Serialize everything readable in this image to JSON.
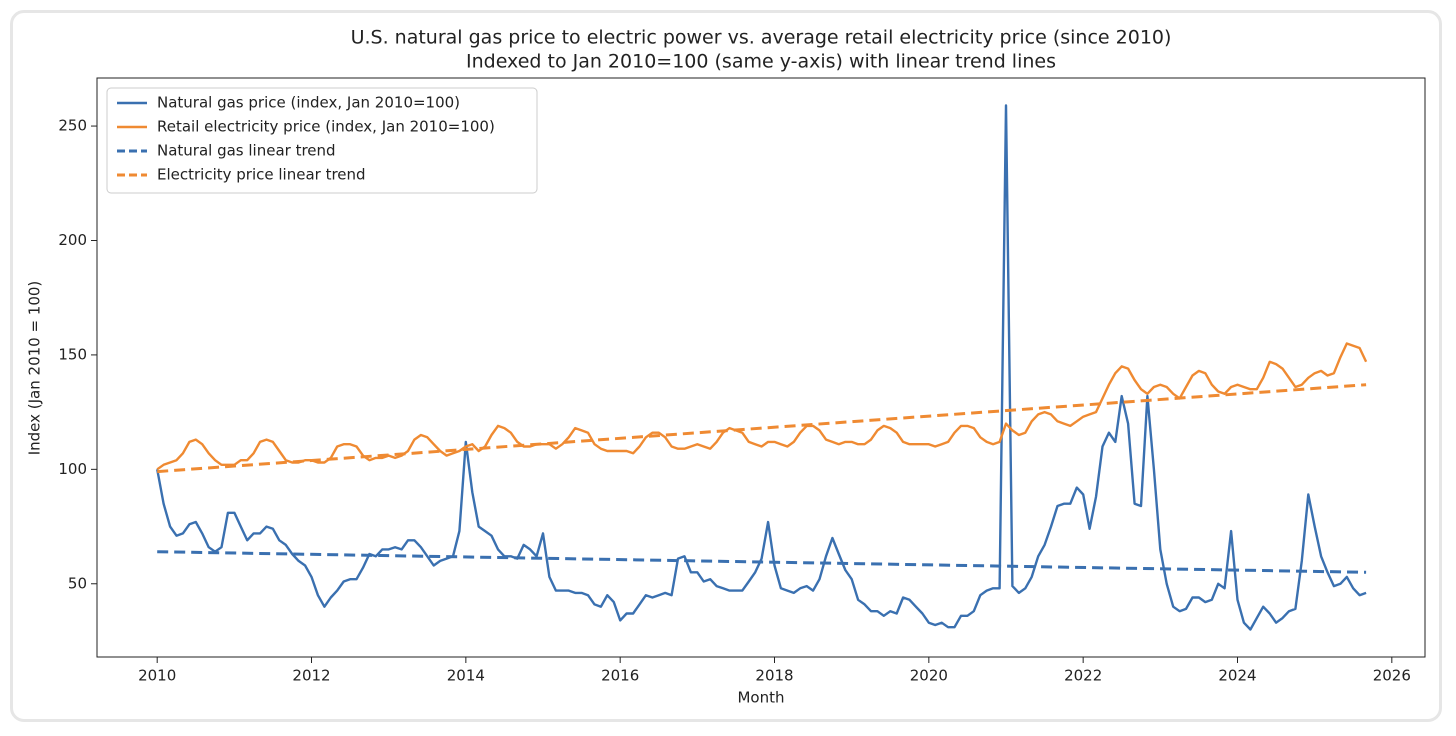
{
  "chart_data": {
    "type": "line",
    "title": "U.S. natural gas price to electric power vs. average retail electricity price (since 2010)",
    "subtitle": "Indexed to Jan 2010=100 (same y-axis) with linear trend lines",
    "x_label": "Month",
    "y_label": "Index (Jan 2010 = 100)",
    "x": [
      2010,
      2010.083,
      2010.167,
      2010.25,
      2010.333,
      2010.417,
      2010.5,
      2010.583,
      2010.667,
      2010.75,
      2010.833,
      2010.917,
      2011,
      2011.083,
      2011.167,
      2011.25,
      2011.333,
      2011.417,
      2011.5,
      2011.583,
      2011.667,
      2011.75,
      2011.833,
      2011.917,
      2012,
      2012.083,
      2012.167,
      2012.25,
      2012.333,
      2012.417,
      2012.5,
      2012.583,
      2012.667,
      2012.75,
      2012.833,
      2012.917,
      2013,
      2013.083,
      2013.167,
      2013.25,
      2013.333,
      2013.417,
      2013.5,
      2013.583,
      2013.667,
      2013.75,
      2013.833,
      2013.917,
      2014,
      2014.083,
      2014.167,
      2014.25,
      2014.333,
      2014.417,
      2014.5,
      2014.583,
      2014.667,
      2014.75,
      2014.833,
      2014.917,
      2015,
      2015.083,
      2015.167,
      2015.25,
      2015.333,
      2015.417,
      2015.5,
      2015.583,
      2015.667,
      2015.75,
      2015.833,
      2015.917,
      2016,
      2016.083,
      2016.167,
      2016.25,
      2016.333,
      2016.417,
      2016.5,
      2016.583,
      2016.667,
      2016.75,
      2016.833,
      2016.917,
      2017,
      2017.083,
      2017.167,
      2017.25,
      2017.333,
      2017.417,
      2017.5,
      2017.583,
      2017.667,
      2017.75,
      2017.833,
      2017.917,
      2018,
      2018.083,
      2018.167,
      2018.25,
      2018.333,
      2018.417,
      2018.5,
      2018.583,
      2018.667,
      2018.75,
      2018.833,
      2018.917,
      2019,
      2019.083,
      2019.167,
      2019.25,
      2019.333,
      2019.417,
      2019.5,
      2019.583,
      2019.667,
      2019.75,
      2019.833,
      2019.917,
      2020,
      2020.083,
      2020.167,
      2020.25,
      2020.333,
      2020.417,
      2020.5,
      2020.583,
      2020.667,
      2020.75,
      2020.833,
      2020.917,
      2021,
      2021.083,
      2021.167,
      2021.25,
      2021.333,
      2021.417,
      2021.5,
      2021.583,
      2021.667,
      2021.75,
      2021.833,
      2021.917,
      2022,
      2022.083,
      2022.167,
      2022.25,
      2022.333,
      2022.417,
      2022.5,
      2022.583,
      2022.667,
      2022.75,
      2022.833,
      2022.917,
      2023,
      2023.083,
      2023.167,
      2023.25,
      2023.333,
      2023.417,
      2023.5,
      2023.583,
      2023.667,
      2023.75,
      2023.833,
      2023.917,
      2024,
      2024.083,
      2024.167,
      2024.25,
      2024.333,
      2024.417,
      2024.5,
      2024.583,
      2024.667,
      2024.75,
      2024.833,
      2024.917,
      2025,
      2025.083,
      2025.167,
      2025.25,
      2025.333,
      2025.417,
      2025.5,
      2025.583,
      2025.667
    ],
    "series": [
      {
        "name": "Natural gas price (index, Jan 2010=100)",
        "color": "#3a70b0",
        "dashed": false,
        "values": [
          100,
          85,
          75,
          71,
          72,
          76,
          77,
          72,
          66,
          64,
          66,
          81,
          81,
          75,
          69,
          72,
          72,
          75,
          74,
          69,
          67,
          63,
          60,
          58,
          53,
          45,
          40,
          44,
          47,
          51,
          52,
          52,
          57,
          63,
          62,
          65,
          65,
          66,
          65,
          69,
          69,
          66,
          62,
          58,
          60,
          61,
          62,
          73,
          112,
          90,
          75,
          73,
          71,
          65,
          62,
          62,
          61,
          67,
          65,
          62,
          72,
          53,
          47,
          47,
          47,
          46,
          46,
          45,
          41,
          40,
          45,
          42,
          34,
          37,
          37,
          41,
          45,
          44,
          45,
          46,
          45,
          61,
          62,
          55,
          55,
          51,
          52,
          49,
          48,
          47,
          47,
          47,
          51,
          55,
          61,
          77,
          58,
          48,
          47,
          46,
          48,
          49,
          47,
          52,
          62,
          70,
          63,
          56,
          52,
          43,
          41,
          38,
          38,
          36,
          38,
          37,
          44,
          43,
          40,
          37,
          33,
          32,
          33,
          31,
          31,
          36,
          36,
          38,
          45,
          47,
          48,
          48,
          259,
          49,
          46,
          48,
          53,
          62,
          67,
          75,
          84,
          85,
          85,
          92,
          89,
          74,
          88,
          110,
          116,
          112,
          132,
          120,
          85,
          84,
          132,
          100,
          65,
          50,
          40,
          38,
          39,
          44,
          44,
          42,
          43,
          50,
          48,
          73,
          43,
          33,
          30,
          35,
          40,
          37,
          33,
          35,
          38,
          39,
          60,
          89,
          75,
          62,
          55,
          49,
          50,
          53,
          48,
          45,
          46
        ]
      },
      {
        "name": "Retail electricity price (index, Jan 2010=100)",
        "color": "#ef8a32",
        "dashed": false,
        "values": [
          100,
          102,
          103,
          104,
          107,
          112,
          113,
          111,
          107,
          104,
          102,
          102,
          102,
          104,
          104,
          107,
          112,
          113,
          112,
          108,
          104,
          103,
          103,
          104,
          104,
          103,
          103,
          105,
          110,
          111,
          111,
          110,
          106,
          104,
          105,
          105,
          106,
          105,
          106,
          108,
          113,
          115,
          114,
          111,
          108,
          106,
          107,
          108,
          110,
          111,
          108,
          110,
          115,
          119,
          118,
          116,
          112,
          110,
          110,
          111,
          111,
          111,
          109,
          111,
          114,
          118,
          117,
          116,
          111,
          109,
          108,
          108,
          108,
          108,
          107,
          110,
          114,
          116,
          116,
          114,
          110,
          109,
          109,
          110,
          111,
          110,
          109,
          112,
          116,
          118,
          117,
          116,
          112,
          111,
          110,
          112,
          112,
          111,
          110,
          112,
          116,
          119,
          119,
          117,
          113,
          112,
          111,
          112,
          112,
          111,
          111,
          113,
          117,
          119,
          118,
          116,
          112,
          111,
          111,
          111,
          111,
          110,
          111,
          112,
          116,
          119,
          119,
          118,
          114,
          112,
          111,
          112,
          120,
          117,
          115,
          116,
          121,
          124,
          125,
          124,
          121,
          120,
          119,
          121,
          123,
          124,
          125,
          131,
          137,
          142,
          145,
          144,
          139,
          135,
          133,
          136,
          137,
          136,
          133,
          131,
          136,
          141,
          143,
          142,
          137,
          134,
          133,
          136,
          137,
          136,
          135,
          135,
          140,
          147,
          146,
          144,
          140,
          136,
          137,
          140,
          142,
          143,
          141,
          142,
          149,
          155,
          154,
          153,
          147
        ]
      },
      {
        "name": "Natural gas linear trend",
        "color": "#3a70b0",
        "dashed": true,
        "x": [
          2010,
          2025.667
        ],
        "values": [
          64,
          55
        ]
      },
      {
        "name": "Electricity price linear trend",
        "color": "#ef8a32",
        "dashed": true,
        "x": [
          2010,
          2025.667
        ],
        "values": [
          99,
          137
        ]
      }
    ],
    "xlim": [
      2009.22,
      2026.43
    ],
    "xticks": [
      2010,
      2012,
      2014,
      2016,
      2018,
      2020,
      2022,
      2024,
      2026
    ],
    "ylim": [
      18,
      271
    ],
    "yticks": [
      50,
      100,
      150,
      200,
      250
    ],
    "grid": false,
    "legend": "upper left"
  }
}
